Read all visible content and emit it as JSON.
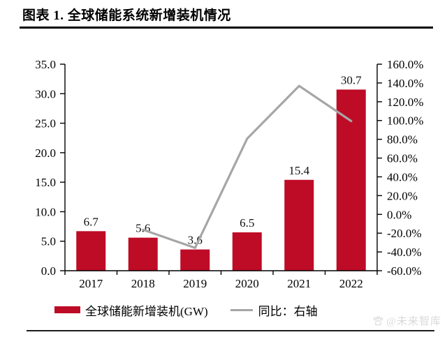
{
  "page": {
    "title": "图表 1. 全球储能系统新增装机情况",
    "watermark_text": "@未来智库"
  },
  "legend": {
    "bars_label": "全球储能新增装机(GW)",
    "line_label": "同比：右轴"
  },
  "colors": {
    "bar": "#BE0B26",
    "line": "#A6A6A6",
    "axis": "#000000",
    "label_text": "#111111",
    "watermark": "#D9D9D9"
  },
  "chart_data": {
    "type": "bar",
    "subtype": "bar+line-dual-axis",
    "title": "图表 1. 全球储能系统新增装机情况",
    "categories": [
      "2017",
      "2018",
      "2019",
      "2020",
      "2021",
      "2022"
    ],
    "series": [
      {
        "name": "全球储能新增装机(GW)",
        "type": "bar",
        "axis": "left",
        "values": [
          6.7,
          5.6,
          3.6,
          6.5,
          15.4,
          30.7
        ],
        "data_labels": [
          "6.7",
          "5.6",
          "3.6",
          "6.5",
          "15.4",
          "30.7"
        ]
      },
      {
        "name": "同比：右轴",
        "type": "line",
        "axis": "right",
        "unit": "%",
        "values": [
          null,
          -16.4,
          -35.7,
          80.6,
          136.9,
          99.4
        ]
      }
    ],
    "left_axis": {
      "min": 0,
      "max": 35,
      "step": 5,
      "tick_labels_top_to_bottom": [
        "35.0",
        "30.0",
        "25.0",
        "20.0",
        "15.0",
        "10.0",
        "5.0",
        "0.0"
      ]
    },
    "right_axis": {
      "min": -60,
      "max": 160,
      "step": 20,
      "tick_labels_top_to_bottom": [
        "160.0%",
        "140.0%",
        "120.0%",
        "100.0%",
        "80.0%",
        "60.0%",
        "40.0%",
        "20.0%",
        "0.0%",
        "-20.0%",
        "-40.0%",
        "-60.0%"
      ]
    },
    "grid": false,
    "legend_position": "bottom"
  }
}
